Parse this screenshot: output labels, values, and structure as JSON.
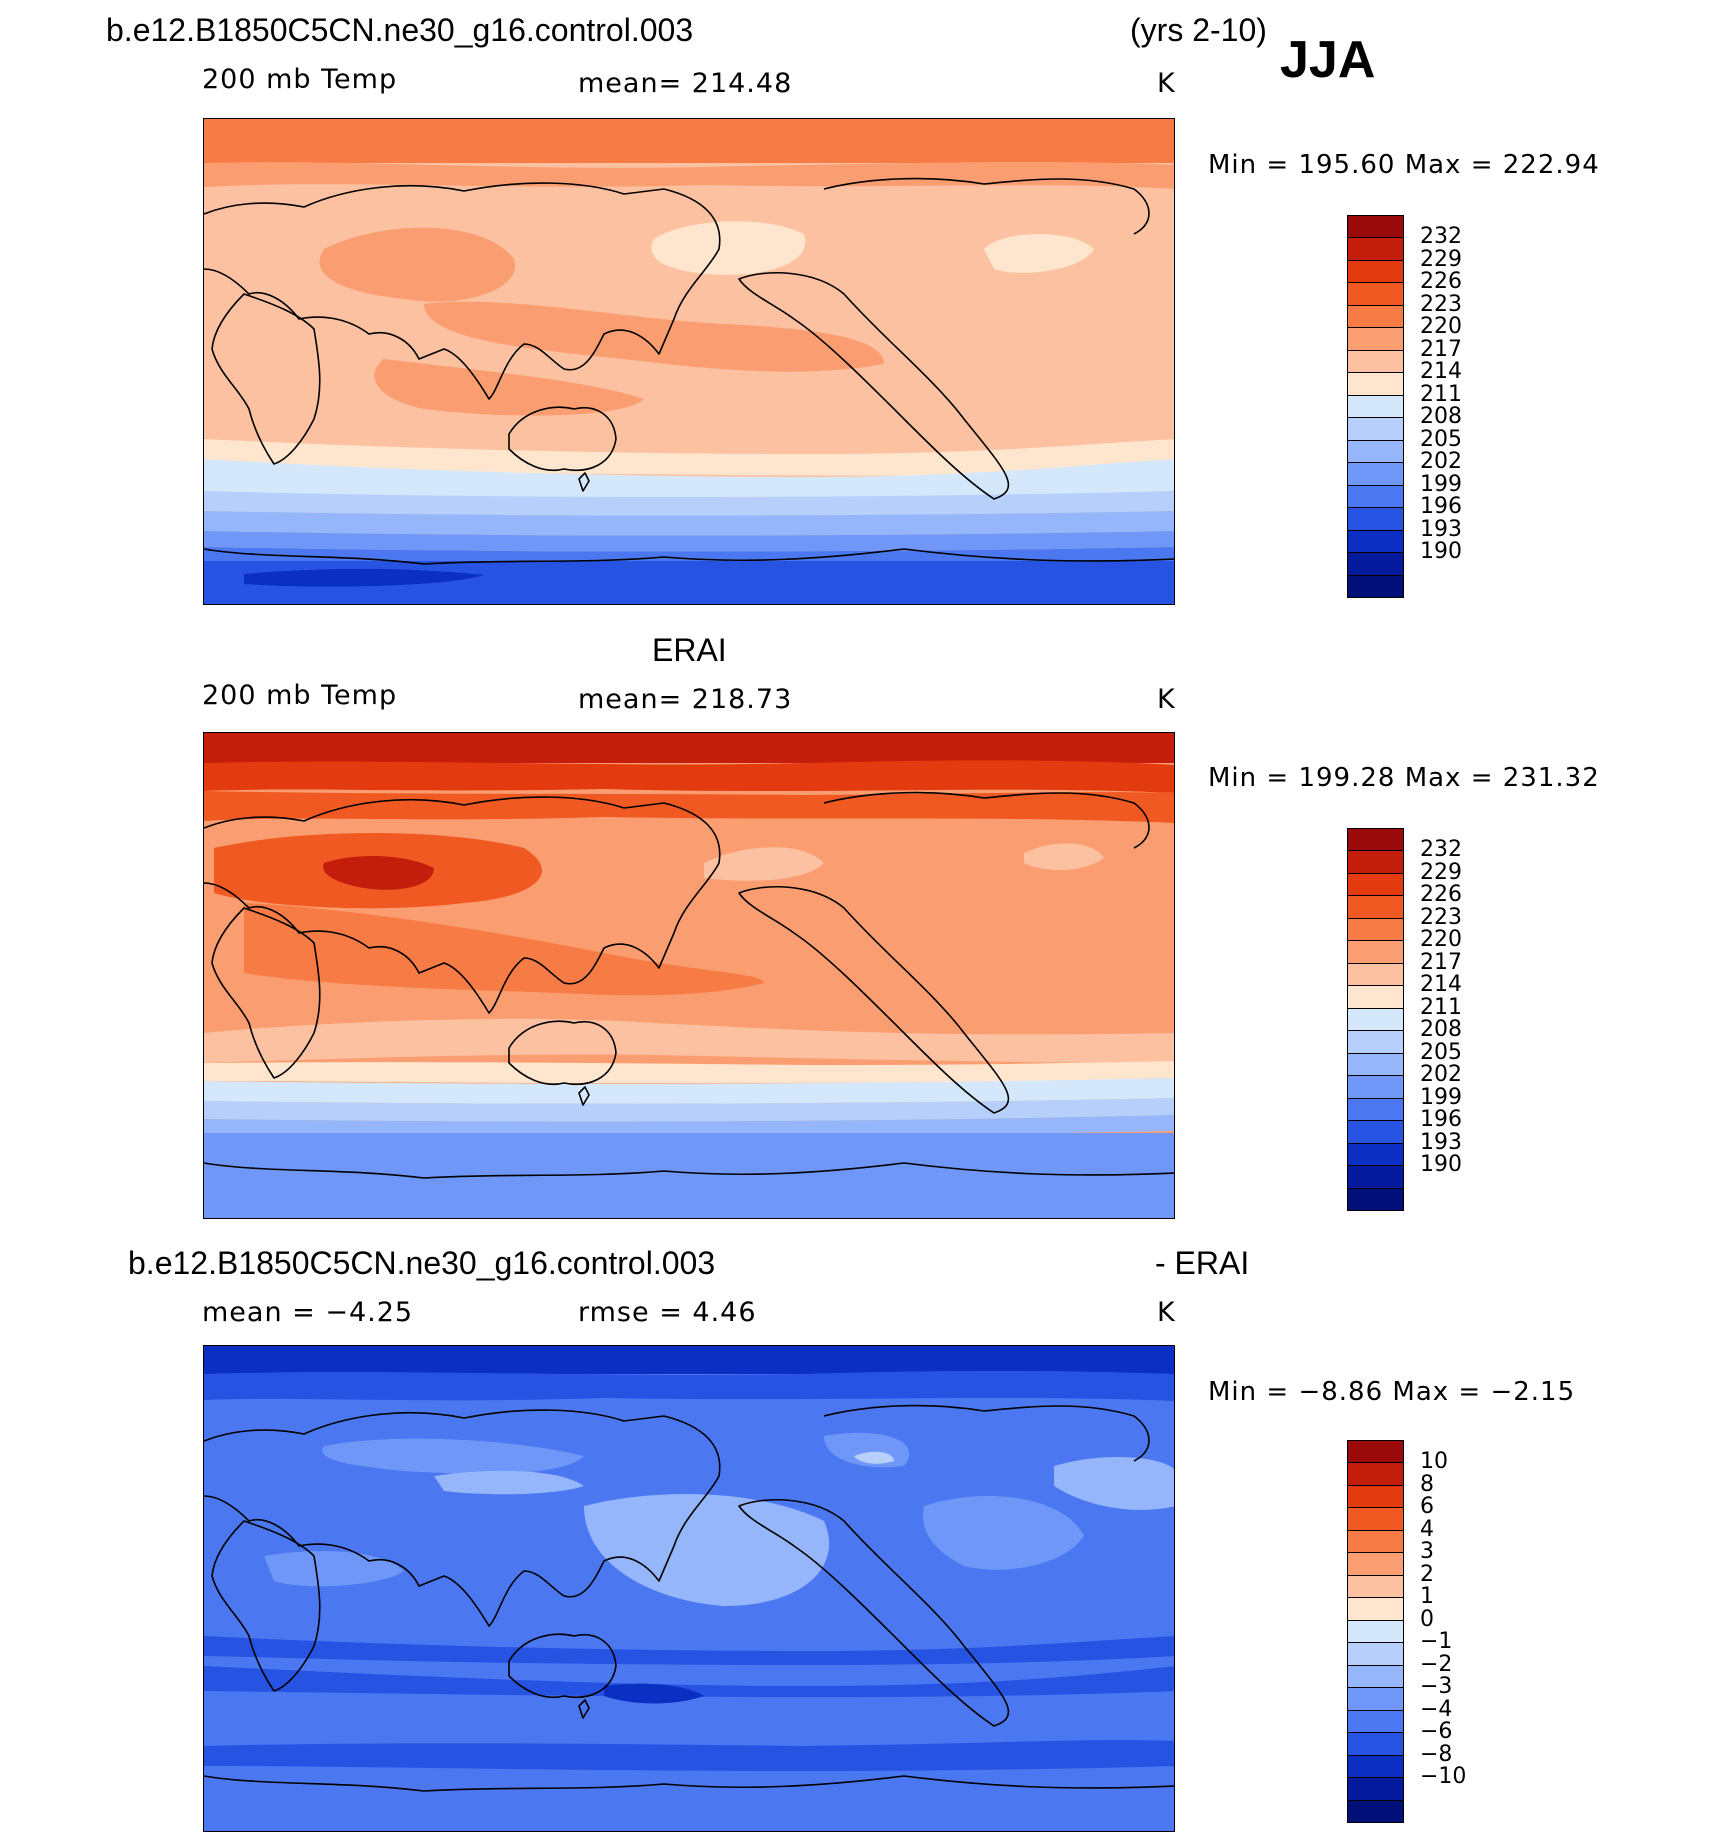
{
  "header": {
    "case": "b.e12.B1850C5CN.ne30_g16.control.003",
    "years": "(yrs 2-10)",
    "season": "JJA"
  },
  "panel_test": {
    "variable": "200 mb Temp",
    "mean": "mean= 214.48",
    "units": "K",
    "minmax": "Min = 195.60 Max = 222.94",
    "colorbar": [
      "232",
      "229",
      "226",
      "223",
      "220",
      "217",
      "214",
      "211",
      "208",
      "205",
      "202",
      "199",
      "196",
      "193",
      "190"
    ]
  },
  "panel_obs": {
    "title": "ERAI",
    "variable": "200 mb Temp",
    "mean": "mean= 218.73",
    "units": "K",
    "minmax": "Min = 199.28 Max = 231.32",
    "colorbar": [
      "232",
      "229",
      "226",
      "223",
      "220",
      "217",
      "214",
      "211",
      "208",
      "205",
      "202",
      "199",
      "196",
      "193",
      "190"
    ]
  },
  "panel_diff": {
    "title_left": "b.e12.B1850C5CN.ne30_g16.control.003",
    "title_right": "- ERAI",
    "mean": "mean = −4.25",
    "rmse": "rmse = 4.46",
    "units": "K",
    "minmax": "Min = −8.86 Max = −2.15",
    "colorbar": [
      "10",
      "8",
      "6",
      "4",
      "3",
      "2",
      "1",
      "0",
      "−1",
      "−2",
      "−3",
      "−4",
      "−6",
      "−8",
      "−10"
    ]
  },
  "colors": {
    "scale": [
      "#9b0a0a",
      "#c21e0b",
      "#e43a10",
      "#f05a22",
      "#f77b44",
      "#fa9e72",
      "#fcc1a0",
      "#fee5cd",
      "#d5e8fb",
      "#b6d0fb",
      "#95b6fa",
      "#6f97f7",
      "#4b77f1",
      "#2753e3",
      "#0a2fc2",
      "#031b9c",
      "#001079"
    ]
  }
}
